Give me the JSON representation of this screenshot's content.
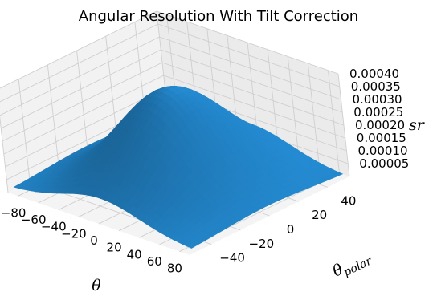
{
  "chart_data": {
    "type": "surface3d",
    "title": "Angular Resolution With Tilt Correction",
    "xlabel": "θ",
    "ylabel_main": "θ",
    "ylabel_sub": "polar",
    "zlabel": "sr",
    "xlim": [
      -90,
      90
    ],
    "ylim": [
      -55,
      55
    ],
    "zlim": [
      0,
      0.0004
    ],
    "x_ticks": [
      "−80",
      "−60",
      "−40",
      "−20",
      "0",
      "20",
      "40",
      "60",
      "80"
    ],
    "y_ticks": [
      "−40",
      "−20",
      "0",
      "20",
      "40"
    ],
    "z_ticks": [
      "0.00005",
      "0.00010",
      "0.00015",
      "0.00020",
      "0.00025",
      "0.00030",
      "0.00035",
      "0.00040"
    ],
    "surface": {
      "peak_value": 0.00037,
      "peak_at": [
        0,
        0
      ],
      "x_sigma": 38,
      "y_sigma": 30,
      "edge_value": 1e-05,
      "color": "#1f77b4"
    },
    "grid": true
  }
}
